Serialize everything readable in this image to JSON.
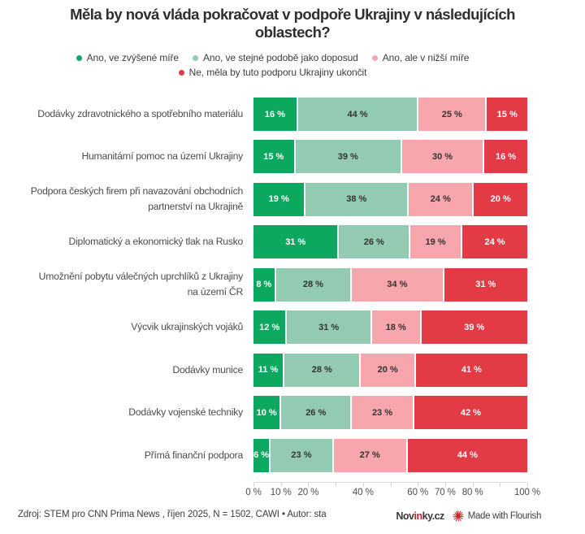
{
  "header": {
    "title": "Měla by nová vláda pokračovat v podpoře Ukrajiny v následujících oblastech?"
  },
  "legend": {
    "items": [
      {
        "label": "Ano, ve zvýšené míře",
        "color": "#0da85f"
      },
      {
        "label": "Ano, ve stejné podobě jako doposud",
        "color": "#92cbb2"
      },
      {
        "label": "Ano, ale v nižší míře",
        "color": "#f8a6ad"
      },
      {
        "label": "Ne, měla by tuto podporu Ukrajiny ukončit",
        "color": "#e23b45"
      }
    ]
  },
  "chart_data": {
    "type": "bar",
    "stacked": true,
    "orientation": "horizontal",
    "unit": "%",
    "title": "Měla by nová vláda pokračovat v podpoře Ukrajiny v následujících oblastech?",
    "categories": [
      "Dodávky zdravotnického a spotřebního materiálu",
      "Humanitární pomoc na území Ukrajiny",
      "Podpora českých firem při navazování obchodních\npartnerství na Ukrajině",
      "Diplomatický a ekonomický tlak na Rusko",
      "Umožnění pobytu válečných uprchlíků z Ukrajiny\nna území ČR",
      "Výcvik ukrajinských vojáků",
      "Dodávky munice",
      "Dodávky vojenské techniky",
      "Přímá finanční podpora"
    ],
    "series": [
      {
        "name": "Ano, ve zvýšené míře",
        "color": "#0da85f",
        "label_color": "#ffffff",
        "values": [
          16,
          15,
          19,
          31,
          8,
          12,
          11,
          10,
          6
        ]
      },
      {
        "name": "Ano, ve stejné podobě jako doposud",
        "color": "#92cbb2",
        "label_color": "#333333",
        "values": [
          44,
          39,
          38,
          26,
          28,
          31,
          28,
          26,
          23
        ]
      },
      {
        "name": "Ano, ale v nižší míře",
        "color": "#f8a6ad",
        "label_color": "#333333",
        "values": [
          25,
          30,
          24,
          19,
          34,
          18,
          20,
          23,
          27
        ]
      },
      {
        "name": "Ne, měla by tuto podporu Ukrajiny ukončit",
        "color": "#e23b45",
        "label_color": "#ffffff",
        "values": [
          15,
          16,
          20,
          24,
          31,
          39,
          41,
          42,
          44
        ]
      }
    ],
    "value_suffix": " %",
    "xlim": [
      0,
      100
    ],
    "x_tick_percents": [
      0,
      10,
      20,
      30,
      40,
      50,
      60,
      70,
      80,
      90,
      100
    ],
    "x_tick_labels": [
      {
        "value": 0,
        "text": "0 %"
      },
      {
        "value": 10,
        "text": "10 %"
      },
      {
        "value": 20,
        "text": "20 %"
      },
      {
        "value": 40,
        "text": "40 %"
      },
      {
        "value": 60,
        "text": "60 %"
      },
      {
        "value": 70,
        "text": "70 %"
      },
      {
        "value": 80,
        "text": "80 %"
      },
      {
        "value": 100,
        "text": "100 %"
      }
    ],
    "legend_position": "top-center",
    "grid": false
  },
  "footer": {
    "source": "Zdroj: STEM pro CNN Prima News , říjen 2025, N = 1502, CAWI • Autor: sta",
    "brand": {
      "prefix": "Nov",
      "highlight": "in",
      "suffix": "ky.cz",
      "highlight_color": "#c8202c"
    },
    "flourish_credit": "Made with Flourish"
  }
}
